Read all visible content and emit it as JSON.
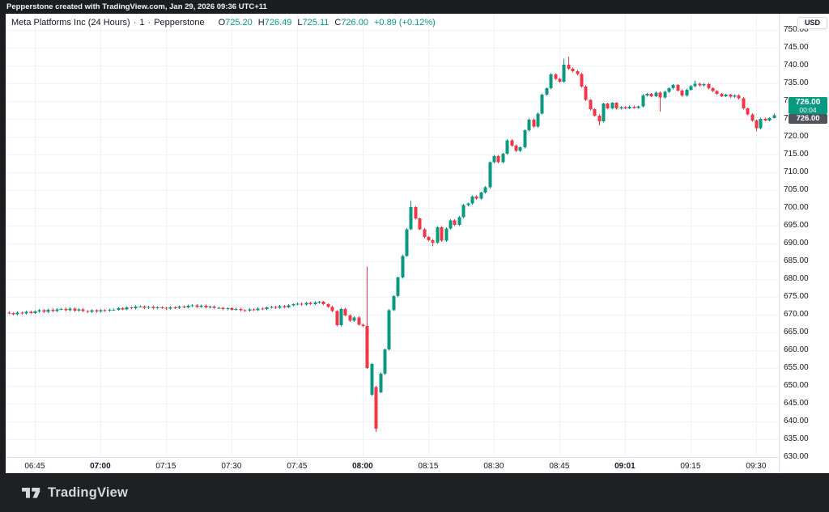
{
  "top_bar": {
    "text": "Pepperstone created with TradingView.com, Jan 29, 2026 09:36 UTC+11"
  },
  "legend": {
    "title": "Meta Platforms Inc (24 Hours)",
    "separator": "·",
    "interval": "1",
    "provider": "Pepperstone",
    "ohlc": [
      {
        "label": "O",
        "value": "725.20"
      },
      {
        "label": "H",
        "value": "726.49"
      },
      {
        "label": "L",
        "value": "725.11"
      },
      {
        "label": "C",
        "value": "726.00"
      }
    ],
    "change": "+0.89 (+0.12%)"
  },
  "price_scale": {
    "currency": "USD",
    "ticks": [
      {
        "label": "750.00",
        "value": 750
      },
      {
        "label": "745.00",
        "value": 745
      },
      {
        "label": "740.00",
        "value": 740
      },
      {
        "label": "735.00",
        "value": 735
      },
      {
        "label": "730.00",
        "value": 730
      },
      {
        "label": "725.00",
        "value": 725
      },
      {
        "label": "720.00",
        "value": 720
      },
      {
        "label": "715.00",
        "value": 715
      },
      {
        "label": "710.00",
        "value": 710
      },
      {
        "label": "705.00",
        "value": 705
      },
      {
        "label": "700.00",
        "value": 700
      },
      {
        "label": "695.00",
        "value": 695
      },
      {
        "label": "690.00",
        "value": 690
      },
      {
        "label": "685.00",
        "value": 685
      },
      {
        "label": "680.00",
        "value": 680
      },
      {
        "label": "675.00",
        "value": 675
      },
      {
        "label": "670.00",
        "value": 670
      },
      {
        "label": "665.00",
        "value": 665
      },
      {
        "label": "660.00",
        "value": 660
      },
      {
        "label": "655.00",
        "value": 655
      },
      {
        "label": "650.00",
        "value": 650
      },
      {
        "label": "645.00",
        "value": 645
      },
      {
        "label": "640.00",
        "value": 640
      },
      {
        "label": "635.00",
        "value": 635
      },
      {
        "label": "630.00",
        "value": 630
      }
    ],
    "last_price_badge": {
      "price": "726.00",
      "countdown": "00:04"
    },
    "secondary_badge": {
      "price": "726.00"
    }
  },
  "time_scale": {
    "ticks": [
      {
        "label": "06:45",
        "bold": false
      },
      {
        "label": "07:00",
        "bold": true
      },
      {
        "label": "07:15",
        "bold": false
      },
      {
        "label": "07:30",
        "bold": false
      },
      {
        "label": "07:45",
        "bold": false
      },
      {
        "label": "08:00",
        "bold": true
      },
      {
        "label": "08:15",
        "bold": false
      },
      {
        "label": "08:30",
        "bold": false
      },
      {
        "label": "08:45",
        "bold": false
      },
      {
        "label": "09:01",
        "bold": true
      },
      {
        "label": "09:15",
        "bold": false
      },
      {
        "label": "09:30",
        "bold": false
      }
    ]
  },
  "footer": {
    "brand": "TradingView"
  },
  "colors": {
    "up": "#089981",
    "down": "#F23645",
    "grid": "#F0F2F6",
    "axis_border": "#E0E3EB",
    "axis_text": "#131722",
    "pane_bg": "#FFFFFF",
    "top_bar_bg": "#1B1D21",
    "footer_bg": "#1E2023",
    "badge_secondary_bg": "#50535E"
  },
  "chart_data": {
    "type": "candlestick",
    "title": "Meta Platforms Inc (24 Hours) · 1 · Pepperstone",
    "interval": "1 minute",
    "start_time": "06:39",
    "end_time": "09:34",
    "ylim": [
      630,
      750
    ],
    "y_grid_step": 5,
    "x_tick_interval_minutes": 15,
    "grid": true,
    "session_high": 742.5,
    "session_low": 637.0,
    "last_bar": {
      "open": 725.2,
      "high": 726.49,
      "low": 725.11,
      "close": 726.0,
      "change": 0.89,
      "change_pct": 0.12
    },
    "first_open": 670.6,
    "closes": [
      670.4,
      670.1,
      670.6,
      670.3,
      670.8,
      670.5,
      670.9,
      671.3,
      670.8,
      671.4,
      671.0,
      671.5,
      671.6,
      671.2,
      671.7,
      671.1,
      671.5,
      671.0,
      670.8,
      671.2,
      670.9,
      671.3,
      671.1,
      671.4,
      671.4,
      671.8,
      671.5,
      672.0,
      671.8,
      672.3,
      672.3,
      671.9,
      672.2,
      671.8,
      672.1,
      671.9,
      671.7,
      672.1,
      671.9,
      672.3,
      672.1,
      672.5,
      672.6,
      672.2,
      672.5,
      672.0,
      672.3,
      671.9,
      671.9,
      671.6,
      671.8,
      671.4,
      671.6,
      671.2,
      671.1,
      671.5,
      671.3,
      671.7,
      671.6,
      672.0,
      672.2,
      671.9,
      672.4,
      672.1,
      672.6,
      672.9,
      673.1,
      672.8,
      673.3,
      673.0,
      673.4,
      673.6,
      672.9,
      672.2,
      671.0,
      667.0,
      671.6,
      669.8,
      668.3,
      669.2,
      667.2,
      666.8,
      655.0,
      656.1,
      637.9,
      653.4,
      660.2,
      671.3,
      675.2,
      680.4,
      686.5,
      694.0,
      700.2,
      697.0,
      694.0,
      691.8,
      690.9,
      690.2,
      694.6,
      690.8,
      694.2,
      696.5,
      695.2,
      697.4,
      700.8,
      701.2,
      703.2,
      702.6,
      704.3,
      705.8,
      712.8,
      714.6,
      712.8,
      715.2,
      719.0,
      717.5,
      716.0,
      717.0,
      721.8,
      724.8,
      722.8,
      726.5,
      731.8,
      733.6,
      737.5,
      736.2,
      735.4,
      740.2,
      739.1,
      738.4,
      737.6,
      734.1,
      730.3,
      727.7,
      725.9,
      724.3,
      729.3,
      728.0,
      729.5,
      727.9,
      728.3,
      728.0,
      728.4,
      728.1,
      728.5,
      731.6,
      732.0,
      731.4,
      732.4,
      731.0,
      732.6,
      733.6,
      734.5,
      733.0,
      731.6,
      733.2,
      734.2,
      734.9,
      734.4,
      734.8,
      733.6,
      732.8,
      732.0,
      731.4,
      731.8,
      731.2,
      731.6,
      730.8,
      727.9,
      726.3,
      724.5,
      722.4,
      725.0,
      724.6,
      725.2,
      726.0
    ],
    "overrides": {
      "82": {
        "h": 683.5,
        "l": 654.8
      },
      "83": {
        "o": 647.5
      },
      "84": {
        "o": 649.7,
        "l": 637.0
      },
      "85": {
        "o": 648.2
      },
      "92": {
        "h": 701.9
      },
      "97": {
        "l": 689.2
      },
      "127": {
        "h": 741.9
      },
      "128": {
        "h": 742.5
      },
      "135": {
        "l": 723.2
      },
      "149": {
        "l": 727.0
      },
      "157": {
        "h": 735.8
      },
      "171": {
        "l": 721.5
      },
      "175": {
        "o": 725.2,
        "h": 726.49,
        "l": 725.11
      }
    }
  }
}
